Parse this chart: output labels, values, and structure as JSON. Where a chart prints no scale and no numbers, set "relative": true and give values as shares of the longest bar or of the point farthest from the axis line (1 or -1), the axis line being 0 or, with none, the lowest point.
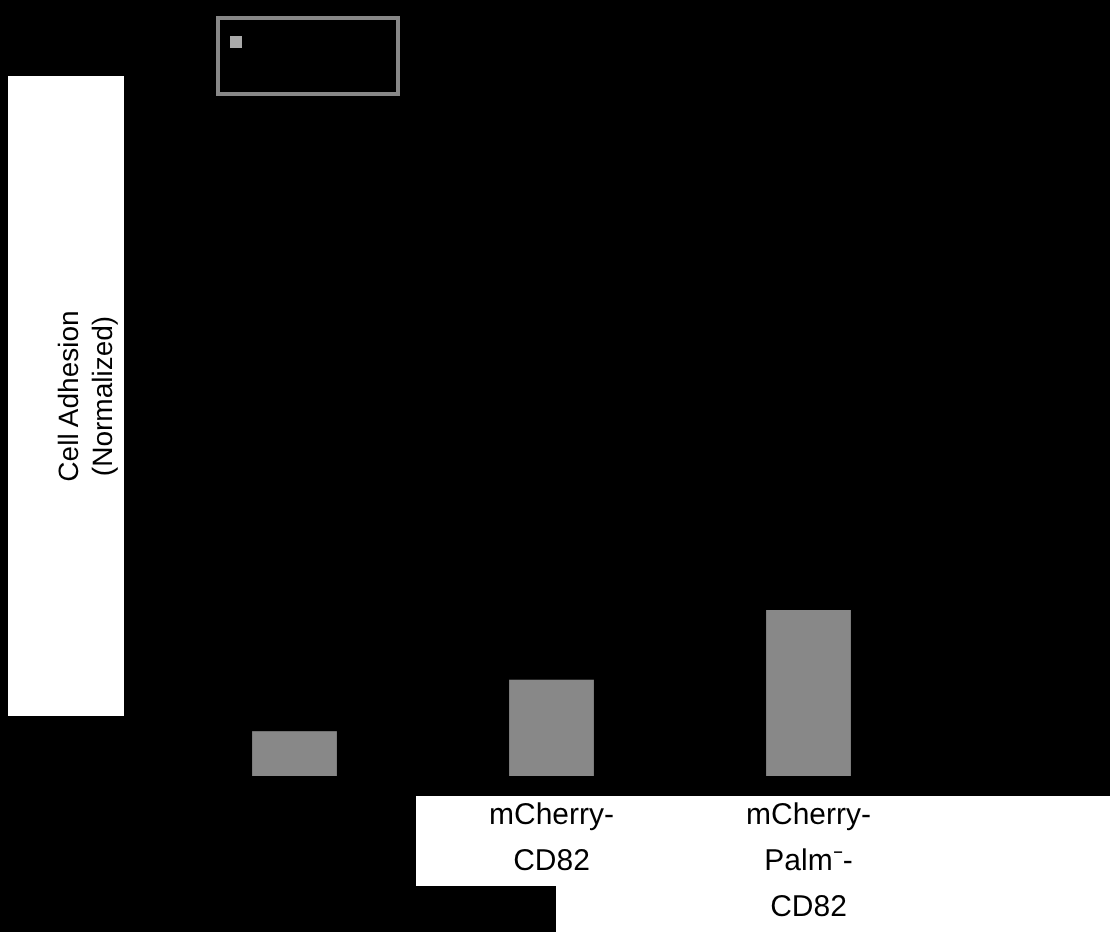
{
  "chart_data": {
    "type": "bar",
    "relative": true,
    "ylabel": "Cell Adhesion\n(Normalized)",
    "categories": [
      null,
      "mCherry-\nCD82",
      "mCherry-\nPalm⁻-\nCD82"
    ],
    "series": [
      {
        "color": "#888888",
        "values": [
          0.27,
          0.58,
          1
        ]
      }
    ]
  }
}
